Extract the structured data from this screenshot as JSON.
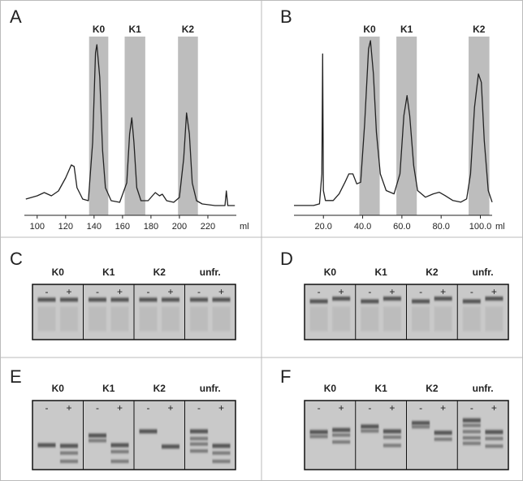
{
  "chart_data": [
    {
      "type": "line",
      "panel_label": "A",
      "x_label": "ml",
      "color": "#222222",
      "band_color": "#bdbdbd",
      "xlim": [
        91,
        240
      ],
      "xticks": [
        100,
        120,
        140,
        160,
        180,
        200,
        220
      ],
      "ylim": [
        0,
        1
      ],
      "x": [
        92,
        100,
        105,
        110,
        115,
        120,
        124,
        126,
        128,
        132,
        136,
        139,
        141,
        142,
        144,
        146,
        148,
        152,
        158,
        163,
        165,
        166.5,
        168,
        170,
        173,
        178,
        183,
        186,
        188,
        191,
        196,
        200,
        203,
        205,
        207,
        209,
        212,
        216,
        225,
        232,
        233,
        234,
        239
      ],
      "values": [
        0.05,
        0.07,
        0.09,
        0.07,
        0.1,
        0.18,
        0.26,
        0.25,
        0.12,
        0.05,
        0.04,
        0.4,
        0.95,
        1.0,
        0.8,
        0.35,
        0.12,
        0.04,
        0.03,
        0.15,
        0.45,
        0.55,
        0.4,
        0.12,
        0.04,
        0.04,
        0.09,
        0.07,
        0.08,
        0.04,
        0.03,
        0.06,
        0.3,
        0.58,
        0.45,
        0.15,
        0.04,
        0.02,
        0.01,
        0.01,
        0.1,
        0.01,
        0.01
      ],
      "bands": [
        {
          "label": "K0",
          "range": [
            136.5,
            150
          ]
        },
        {
          "label": "K1",
          "range": [
            161.5,
            176
          ]
        },
        {
          "label": "K2",
          "range": [
            199,
            213
          ]
        }
      ]
    },
    {
      "type": "line",
      "panel_label": "B",
      "x_label": "ml",
      "color": "#222222",
      "band_color": "#bdbdbd",
      "xlim": [
        5,
        106
      ],
      "xticks": [
        {
          "value": 20,
          "label": "20.0"
        },
        {
          "value": 40,
          "label": "40.0"
        },
        {
          "value": 60,
          "label": "60.0"
        },
        {
          "value": 80,
          "label": "80.0"
        },
        {
          "value": 100,
          "label": "100.0"
        }
      ],
      "ylim": [
        0,
        1
      ],
      "x": [
        5,
        15,
        18,
        19.2,
        19.6,
        20,
        21,
        25,
        28,
        31,
        33,
        35,
        37,
        39,
        41,
        43,
        44,
        45.5,
        47,
        49,
        52,
        56,
        59,
        61,
        62.6,
        64,
        66,
        68,
        72,
        76,
        79,
        82,
        86,
        90,
        93,
        95,
        97,
        99,
        100.5,
        102,
        104,
        106
      ],
      "values": [
        0.01,
        0.01,
        0.02,
        0.2,
        0.92,
        0.1,
        0.04,
        0.04,
        0.08,
        0.15,
        0.2,
        0.2,
        0.14,
        0.15,
        0.5,
        0.95,
        1.0,
        0.8,
        0.45,
        0.2,
        0.1,
        0.08,
        0.2,
        0.55,
        0.67,
        0.55,
        0.25,
        0.1,
        0.06,
        0.08,
        0.09,
        0.07,
        0.04,
        0.03,
        0.05,
        0.2,
        0.6,
        0.8,
        0.75,
        0.4,
        0.1,
        0.03
      ],
      "bands": [
        {
          "label": "K0",
          "range": [
            38.3,
            48.7
          ]
        },
        {
          "label": "K1",
          "range": [
            57.2,
            67.6
          ]
        },
        {
          "label": "K2",
          "range": [
            94,
            104.6
          ]
        }
      ]
    }
  ],
  "gels": [
    {
      "panel_label": "C",
      "groups": [
        {
          "label": "K0",
          "lanes": [
            "-",
            "+"
          ]
        },
        {
          "label": "K1",
          "lanes": [
            "-",
            "+"
          ]
        },
        {
          "label": "K2",
          "lanes": [
            "-",
            "+"
          ]
        },
        {
          "label": "unfr.",
          "lanes": [
            "-",
            "+"
          ]
        }
      ]
    },
    {
      "panel_label": "D",
      "groups": [
        {
          "label": "K0",
          "lanes": [
            "-",
            "+"
          ]
        },
        {
          "label": "K1",
          "lanes": [
            "-",
            "+"
          ]
        },
        {
          "label": "K2",
          "lanes": [
            "-",
            "+"
          ]
        },
        {
          "label": "unfr.",
          "lanes": [
            "-",
            "+"
          ]
        }
      ]
    },
    {
      "panel_label": "E",
      "groups": [
        {
          "label": "K0",
          "lanes": [
            "-",
            "+"
          ]
        },
        {
          "label": "K1",
          "lanes": [
            "-",
            "+"
          ]
        },
        {
          "label": "K2",
          "lanes": [
            "-",
            "+"
          ]
        },
        {
          "label": "unfr.",
          "lanes": [
            "-",
            "+"
          ]
        }
      ]
    },
    {
      "panel_label": "F",
      "groups": [
        {
          "label": "K0",
          "lanes": [
            "-",
            "+"
          ]
        },
        {
          "label": "K1",
          "lanes": [
            "-",
            "+"
          ]
        },
        {
          "label": "K2",
          "lanes": [
            "-",
            "+"
          ]
        },
        {
          "label": "unfr.",
          "lanes": [
            "-",
            "+"
          ]
        }
      ]
    }
  ]
}
